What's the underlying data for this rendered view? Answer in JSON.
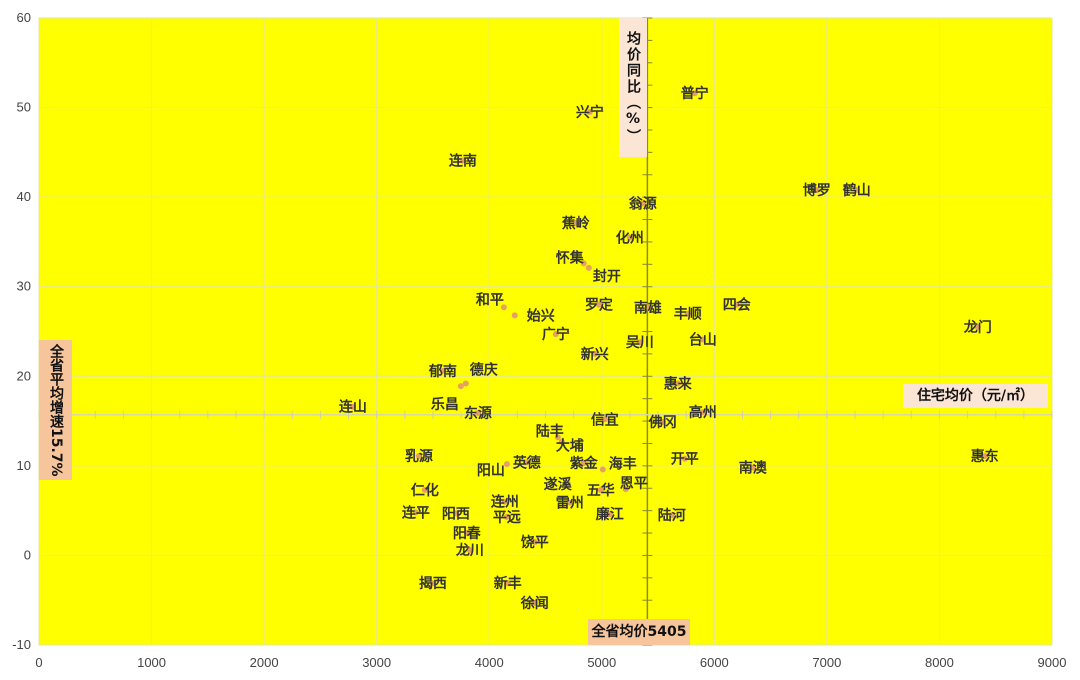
{
  "chart_data": {
    "type": "scatter",
    "title": "",
    "xlabel": "住宅均价（元/㎡）",
    "ylabel": "均价同比（%）",
    "xlim": [
      0,
      9000
    ],
    "ylim": [
      -10,
      60
    ],
    "x_ticks": [
      "0",
      "1000",
      "2000",
      "3000",
      "4000",
      "5000",
      "6000",
      "7000",
      "8000",
      "9000"
    ],
    "y_ticks": [
      "-10",
      "0",
      "10",
      "20",
      "30",
      "40",
      "50",
      "60"
    ],
    "grid": true,
    "background_color": "#FFFF00",
    "point_color": "#E8A060",
    "reference_lines": {
      "x_value": 5405,
      "x_label": "全省均价5405",
      "y_value": 15.7,
      "y_label": "全省平均增速15.7%"
    },
    "points": [
      {
        "name": "兴宁",
        "x": 4894,
        "y": 49.5
      },
      {
        "name": "普宁",
        "x": 5826,
        "y": 51.6
      },
      {
        "name": "连南",
        "x": 3766,
        "y": 44.1
      },
      {
        "name": "博罗",
        "x": 6910,
        "y": 40.8
      },
      {
        "name": "鹤山",
        "x": 7265,
        "y": 40.8
      },
      {
        "name": "翁源",
        "x": 5364,
        "y": 39.3
      },
      {
        "name": "蕉岭",
        "x": 4769,
        "y": 37.1
      },
      {
        "name": "化州",
        "x": 5249,
        "y": 35.5
      },
      {
        "name": "怀集",
        "x": 4840,
        "y": 32.6
      },
      {
        "name": "封开",
        "x": 4885,
        "y": 32.1
      },
      {
        "name": "和平",
        "x": 4130,
        "y": 27.7
      },
      {
        "name": "始兴",
        "x": 4227,
        "y": 26.8
      },
      {
        "name": "罗定",
        "x": 4974,
        "y": 28.0
      },
      {
        "name": "南雄",
        "x": 5409,
        "y": 27.7
      },
      {
        "name": "丰顺",
        "x": 5764,
        "y": 27.0
      },
      {
        "name": "四会",
        "x": 6199,
        "y": 28.0
      },
      {
        "name": "广宁",
        "x": 4592,
        "y": 24.7
      },
      {
        "name": "吴川",
        "x": 5338,
        "y": 23.8
      },
      {
        "name": "台山",
        "x": 5897,
        "y": 24.1
      },
      {
        "name": "龙门",
        "x": 8340,
        "y": 25.5
      },
      {
        "name": "新兴",
        "x": 4938,
        "y": 22.5
      },
      {
        "name": "郁南",
        "x": 3588,
        "y": 20.6
      },
      {
        "name": "德庆",
        "x": 3792,
        "y": 19.2
      },
      {
        "name": "乐昌",
        "x": 3748,
        "y": 18.9
      },
      {
        "name": "惠来",
        "x": 5675,
        "y": 19.2
      },
      {
        "name": "连山",
        "x": 2789,
        "y": 16.6
      },
      {
        "name": "东源",
        "x": 3899,
        "y": 15.9
      },
      {
        "name": "高州",
        "x": 5897,
        "y": 16.0
      },
      {
        "name": "信宜",
        "x": 5027,
        "y": 15.2
      },
      {
        "name": "佛冈",
        "x": 5542,
        "y": 14.9
      },
      {
        "name": "陆丰",
        "x": 4609,
        "y": 13.2
      },
      {
        "name": "大埔",
        "x": 4645,
        "y": 12.7
      },
      {
        "name": "乳源",
        "x": 3375,
        "y": 11.1
      },
      {
        "name": "阳山",
        "x": 4157,
        "y": 10.2
      },
      {
        "name": "英德",
        "x": 4334,
        "y": 10.4
      },
      {
        "name": "紫金",
        "x": 4840,
        "y": 10.3
      },
      {
        "name": "海丰",
        "x": 5009,
        "y": 9.6
      },
      {
        "name": "开平",
        "x": 5737,
        "y": 10.8
      },
      {
        "name": "南澳",
        "x": 6341,
        "y": 9.8
      },
      {
        "name": "惠东",
        "x": 8402,
        "y": 11.1
      },
      {
        "name": "仁化",
        "x": 3428,
        "y": 7.3
      },
      {
        "name": "遂溪",
        "x": 4698,
        "y": 8.0
      },
      {
        "name": "五华",
        "x": 4991,
        "y": 7.3
      },
      {
        "name": "恩平",
        "x": 5213,
        "y": 7.4
      },
      {
        "name": "连平",
        "x": 3348,
        "y": 4.8
      },
      {
        "name": "阳西",
        "x": 3704,
        "y": 4.7
      },
      {
        "name": "连州",
        "x": 4139,
        "y": 6.0
      },
      {
        "name": "平远",
        "x": 4157,
        "y": 4.3
      },
      {
        "name": "雷州",
        "x": 4716,
        "y": 5.9
      },
      {
        "name": "廉江",
        "x": 5071,
        "y": 4.6
      },
      {
        "name": "陆河",
        "x": 5622,
        "y": 4.5
      },
      {
        "name": "阳春",
        "x": 3801,
        "y": 2.5
      },
      {
        "name": "龙川",
        "x": 3828,
        "y": 0.6
      },
      {
        "name": "饶平",
        "x": 4405,
        "y": 1.5
      },
      {
        "name": "揭西",
        "x": 3499,
        "y": -3.1
      },
      {
        "name": "新丰",
        "x": 4165,
        "y": -3.1
      },
      {
        "name": "徐闻",
        "x": 4405,
        "y": -5.3
      }
    ]
  }
}
